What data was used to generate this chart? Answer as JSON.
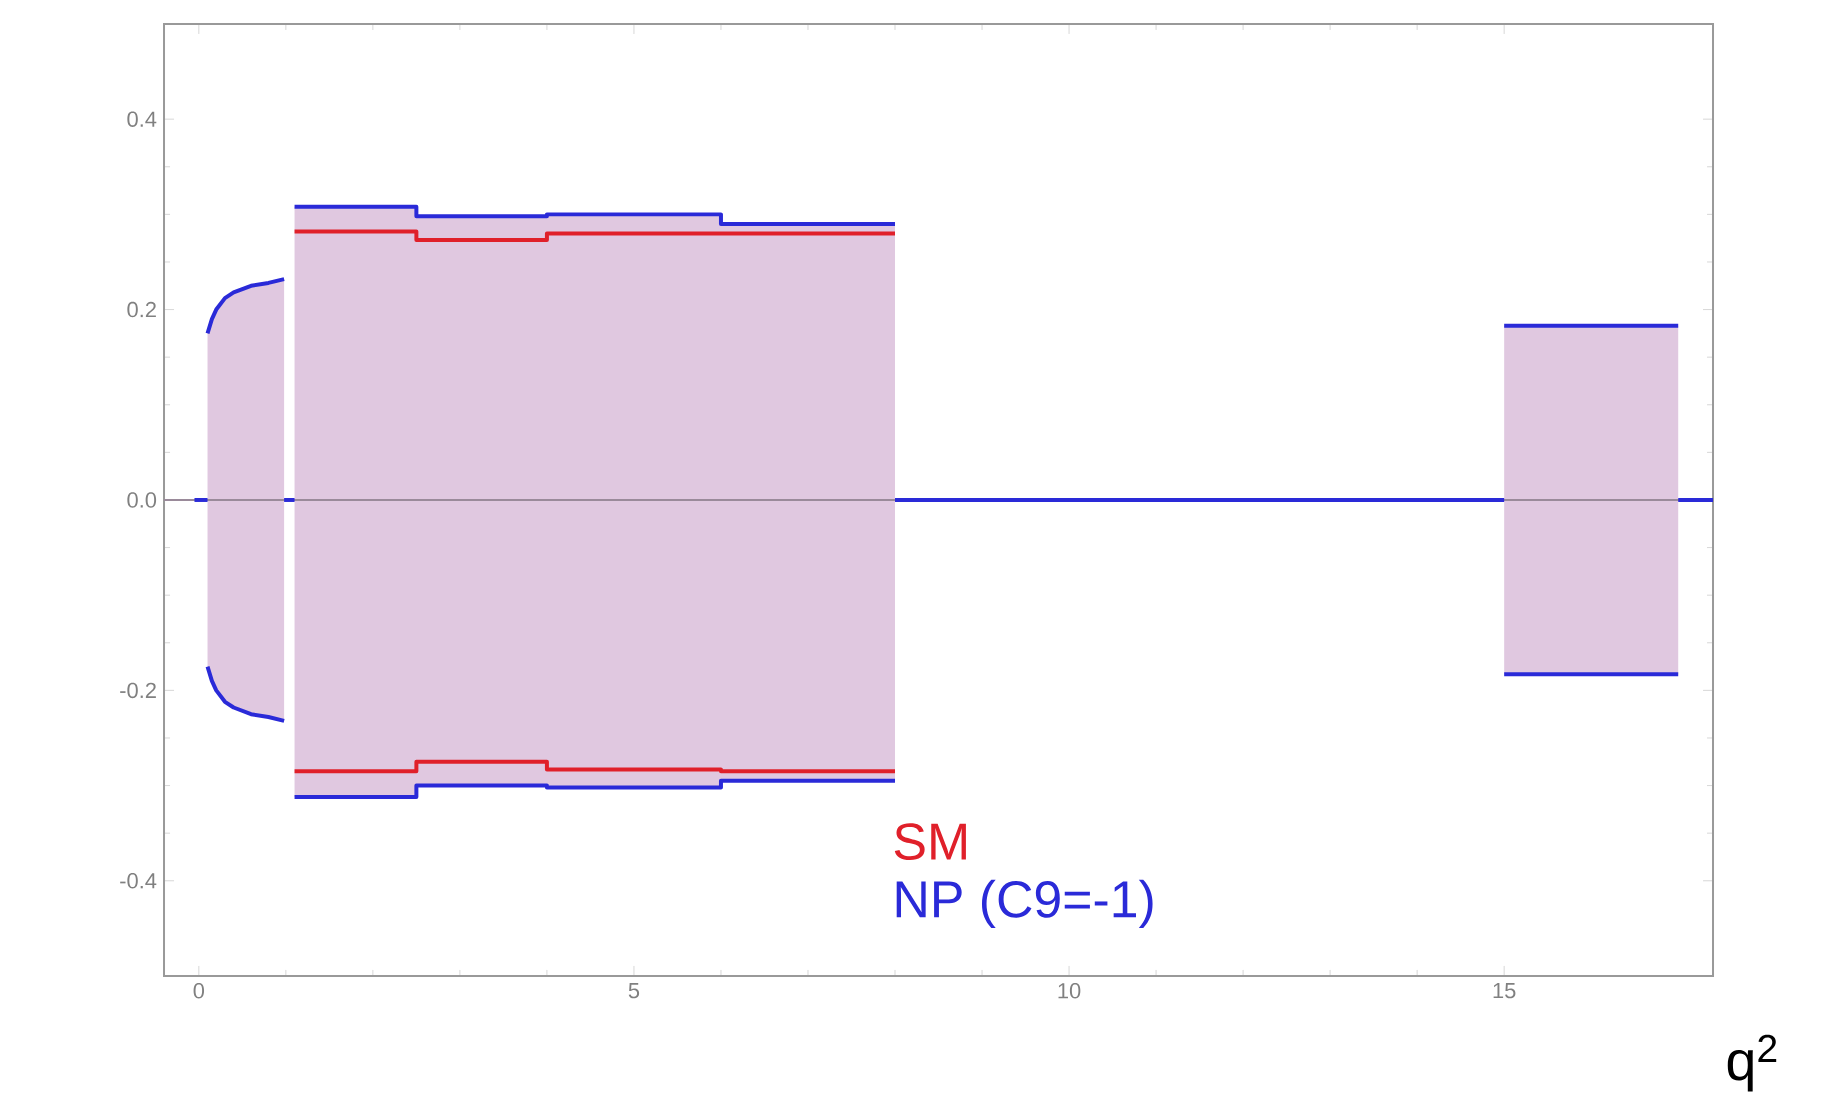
{
  "chart_data": {
    "type": "area",
    "xlabel": "q$^{2}$",
    "xlim": [
      -0.4,
      17.4
    ],
    "ylim": [
      -0.5,
      0.5
    ],
    "xticks": [
      0,
      5,
      10,
      15
    ],
    "yticks": [
      -0.4,
      -0.2,
      {
        "value": 0,
        "label": "0.0"
      },
      0.2,
      0.4
    ],
    "legend": "bottom",
    "ref_lines": [
      {
        "axis": "y",
        "value": 0,
        "color": "#9a8a9a"
      }
    ],
    "series": [
      {
        "name": "SM",
        "type": "line",
        "color": "#e0202a",
        "x": [
          1.1,
          2.5,
          2.5,
          4,
          4,
          6,
          6,
          8
        ],
        "values": [
          0.282,
          0.282,
          0.273,
          0.273,
          0.28,
          0.28,
          0.28,
          0.28
        ]
      },
      {
        "type": "line",
        "color": "#e0202a",
        "x": [
          1.1,
          2.5,
          2.5,
          4,
          4,
          6,
          6,
          8
        ],
        "values": [
          -0.285,
          -0.285,
          -0.275,
          -0.275,
          -0.283,
          -0.283,
          -0.285,
          -0.285
        ]
      },
      {
        "name": "NP (C9=-1)",
        "color": "#2a2ad8",
        "x": [
          0.1,
          0.15,
          0.2,
          0.3,
          0.4,
          0.6,
          0.8,
          0.98
        ],
        "values": [
          0.175,
          0.19,
          0.2,
          0.212,
          0.218,
          0.225,
          0.228,
          0.232
        ]
      },
      {
        "color": "#2a2ad8",
        "x": [
          1.1,
          2.5,
          2.5,
          4,
          4,
          6,
          6,
          8
        ],
        "values": [
          0.308,
          0.308,
          0.298,
          0.298,
          0.3,
          0.3,
          0.29,
          0.29
        ]
      },
      {
        "color": "#2a2ad8",
        "x": [
          15,
          17
        ],
        "values": [
          0.183,
          0.183
        ]
      },
      {
        "color": "#2a2ad8",
        "x": [
          0.1,
          0.15,
          0.2,
          0.3,
          0.4,
          0.6,
          0.8,
          0.98
        ],
        "values": [
          -0.175,
          -0.19,
          -0.2,
          -0.212,
          -0.218,
          -0.225,
          -0.228,
          -0.232
        ]
      },
      {
        "color": "#2a2ad8",
        "x": [
          1.1,
          2.5,
          2.5,
          4,
          4,
          6,
          6,
          8
        ],
        "values": [
          -0.312,
          -0.312,
          -0.3,
          -0.3,
          -0.302,
          -0.302,
          -0.295,
          -0.295
        ]
      },
      {
        "color": "#2a2ad8",
        "x": [
          15,
          17
        ],
        "values": [
          -0.183,
          -0.183
        ]
      },
      {
        "type": "line",
        "color": "#2a2ad8",
        "x": [
          -0.05,
          0.1
        ],
        "values": [
          0,
          0
        ]
      },
      {
        "type": "line",
        "color": "#2a2ad8",
        "x": [
          0.98,
          1.1
        ],
        "values": [
          0,
          0
        ]
      },
      {
        "type": "line",
        "color": "#2a2ad8",
        "x": [
          8,
          15
        ],
        "values": [
          0,
          0
        ]
      },
      {
        "type": "line",
        "color": "#2a2ad8",
        "x": [
          17,
          17.4
        ],
        "values": [
          0,
          0
        ]
      }
    ]
  }
}
